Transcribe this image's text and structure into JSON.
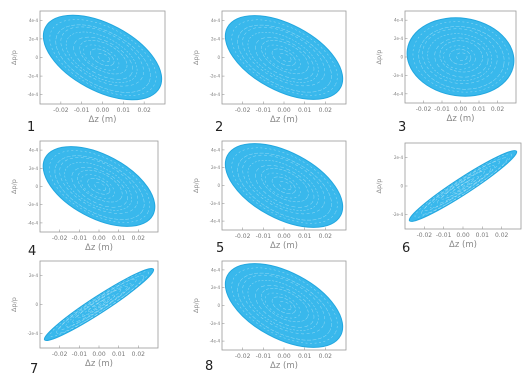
{
  "colors": {
    "phase_space": "#39b8ec",
    "phase_space_edge": "#22a7df",
    "trace": "#ffffff"
  },
  "chart_data": [
    {
      "panel": "1",
      "type": "scatter",
      "shape": "filled-ellipse",
      "xlabel": "Δz (m)",
      "ylabel": "Δp/p",
      "xticks": [
        "-0.02",
        "-0.01",
        "0.00",
        "0.01",
        "0.02"
      ],
      "yticks": [
        "4e-4",
        "2e-4",
        "0",
        "-2e-4",
        "-4e-4"
      ],
      "xlim": [
        -0.03,
        0.03
      ],
      "ylim": [
        -0.0005,
        0.0005
      ],
      "ellipse": {
        "center": [
          0.0,
          0.0
        ],
        "semi_major": 0.031,
        "semi_minor": 0.016,
        "tilt_deg": -28
      }
    },
    {
      "panel": "2",
      "type": "scatter",
      "shape": "filled-ellipse",
      "xlabel": "Δz (m)",
      "ylabel": "Δp/p",
      "xticks": [
        "-0.02",
        "-0.01",
        "0.00",
        "0.01",
        "0.02"
      ],
      "yticks": [
        "4e-4",
        "2e-4",
        "0",
        "-2e-4",
        "-4e-4"
      ],
      "xlim": [
        -0.03,
        0.03
      ],
      "ylim": [
        -0.0005,
        0.0005
      ],
      "ellipse": {
        "center": [
          0.0,
          0.0
        ],
        "semi_major": 0.031,
        "semi_minor": 0.016,
        "tilt_deg": -28
      }
    },
    {
      "panel": "3",
      "type": "scatter",
      "shape": "filled-ellipse",
      "xlabel": "Δz (m)",
      "ylabel": "Δp/p",
      "xticks": [
        "-0.02",
        "-0.01",
        "0.00",
        "0.01",
        "0.02"
      ],
      "yticks": [
        "4e-4",
        "2e-4",
        "0",
        "-2e-4",
        "-4e-4"
      ],
      "xlim": [
        -0.03,
        0.03
      ],
      "ylim": [
        -0.0005,
        0.0005
      ],
      "ellipse": {
        "center": [
          0.0,
          0.0
        ],
        "semi_major": 0.029,
        "semi_minor": 0.021,
        "tilt_deg": -8
      }
    },
    {
      "panel": "4",
      "type": "scatter",
      "shape": "filled-ellipse",
      "xlabel": "Δz (m)",
      "ylabel": "Δp/p",
      "xticks": [
        "-0.02",
        "-0.01",
        "0.00",
        "0.01",
        "0.02"
      ],
      "yticks": [
        "4e-4",
        "2e-4",
        "0",
        "-2e-4",
        "-4e-4"
      ],
      "xlim": [
        -0.03,
        0.03
      ],
      "ylim": [
        -0.0005,
        0.0005
      ],
      "ellipse": {
        "center": [
          0.0,
          0.0
        ],
        "semi_major": 0.031,
        "semi_minor": 0.016,
        "tilt_deg": -28
      }
    },
    {
      "panel": "5",
      "type": "scatter",
      "shape": "filled-ellipse",
      "xlabel": "Δz (m)",
      "ylabel": "Δp/p",
      "xticks": [
        "-0.02",
        "-0.01",
        "0.00",
        "0.01",
        "0.02"
      ],
      "yticks": [
        "4e-4",
        "2e-4",
        "0",
        "-2e-4",
        "-4e-4"
      ],
      "xlim": [
        -0.03,
        0.03
      ],
      "ylim": [
        -0.0005,
        0.0005
      ],
      "ellipse": {
        "center": [
          0.0,
          0.0
        ],
        "semi_major": 0.031,
        "semi_minor": 0.016,
        "tilt_deg": -28
      }
    },
    {
      "panel": "6",
      "type": "scatter",
      "shape": "filled-ellipse",
      "xlabel": "Δz (m)",
      "ylabel": "Δp/p",
      "xticks": [
        "-0.02",
        "-0.01",
        "0.00",
        "0.01",
        "0.02"
      ],
      "yticks": [
        "2e-4",
        "0",
        "-2e-4"
      ],
      "xlim": [
        -0.03,
        0.03
      ],
      "ylim": [
        -0.0003,
        0.0003
      ],
      "ellipse": {
        "center": [
          0.0,
          0.0
        ],
        "semi_major": 0.033,
        "semi_minor": 0.0042,
        "tilt_deg": 33
      }
    },
    {
      "panel": "7",
      "type": "scatter",
      "shape": "filled-ellipse",
      "xlabel": "Δz (m)",
      "ylabel": "Δp/p",
      "xticks": [
        "-0.02",
        "-0.01",
        "0.00",
        "0.01",
        "0.02"
      ],
      "yticks": [
        "2e-4",
        "0",
        "-2e-4"
      ],
      "xlim": [
        -0.03,
        0.03
      ],
      "ylim": [
        -0.0003,
        0.0003
      ],
      "ellipse": {
        "center": [
          0.0,
          0.0
        ],
        "semi_major": 0.033,
        "semi_minor": 0.0042,
        "tilt_deg": 33
      }
    },
    {
      "panel": "8",
      "type": "scatter",
      "shape": "filled-ellipse",
      "xlabel": "Δz (m)",
      "ylabel": "Δp/p",
      "xticks": [
        "-0.02",
        "-0.01",
        "0.00",
        "0.01",
        "0.02"
      ],
      "yticks": [
        "4e-4",
        "2e-4",
        "0",
        "-2e-4",
        "-4e-4"
      ],
      "xlim": [
        -0.03,
        0.03
      ],
      "ylim": [
        -0.0005,
        0.0005
      ],
      "ellipse": {
        "center": [
          0.0,
          0.0
        ],
        "semi_major": 0.031,
        "semi_minor": 0.016,
        "tilt_deg": -28
      }
    }
  ]
}
